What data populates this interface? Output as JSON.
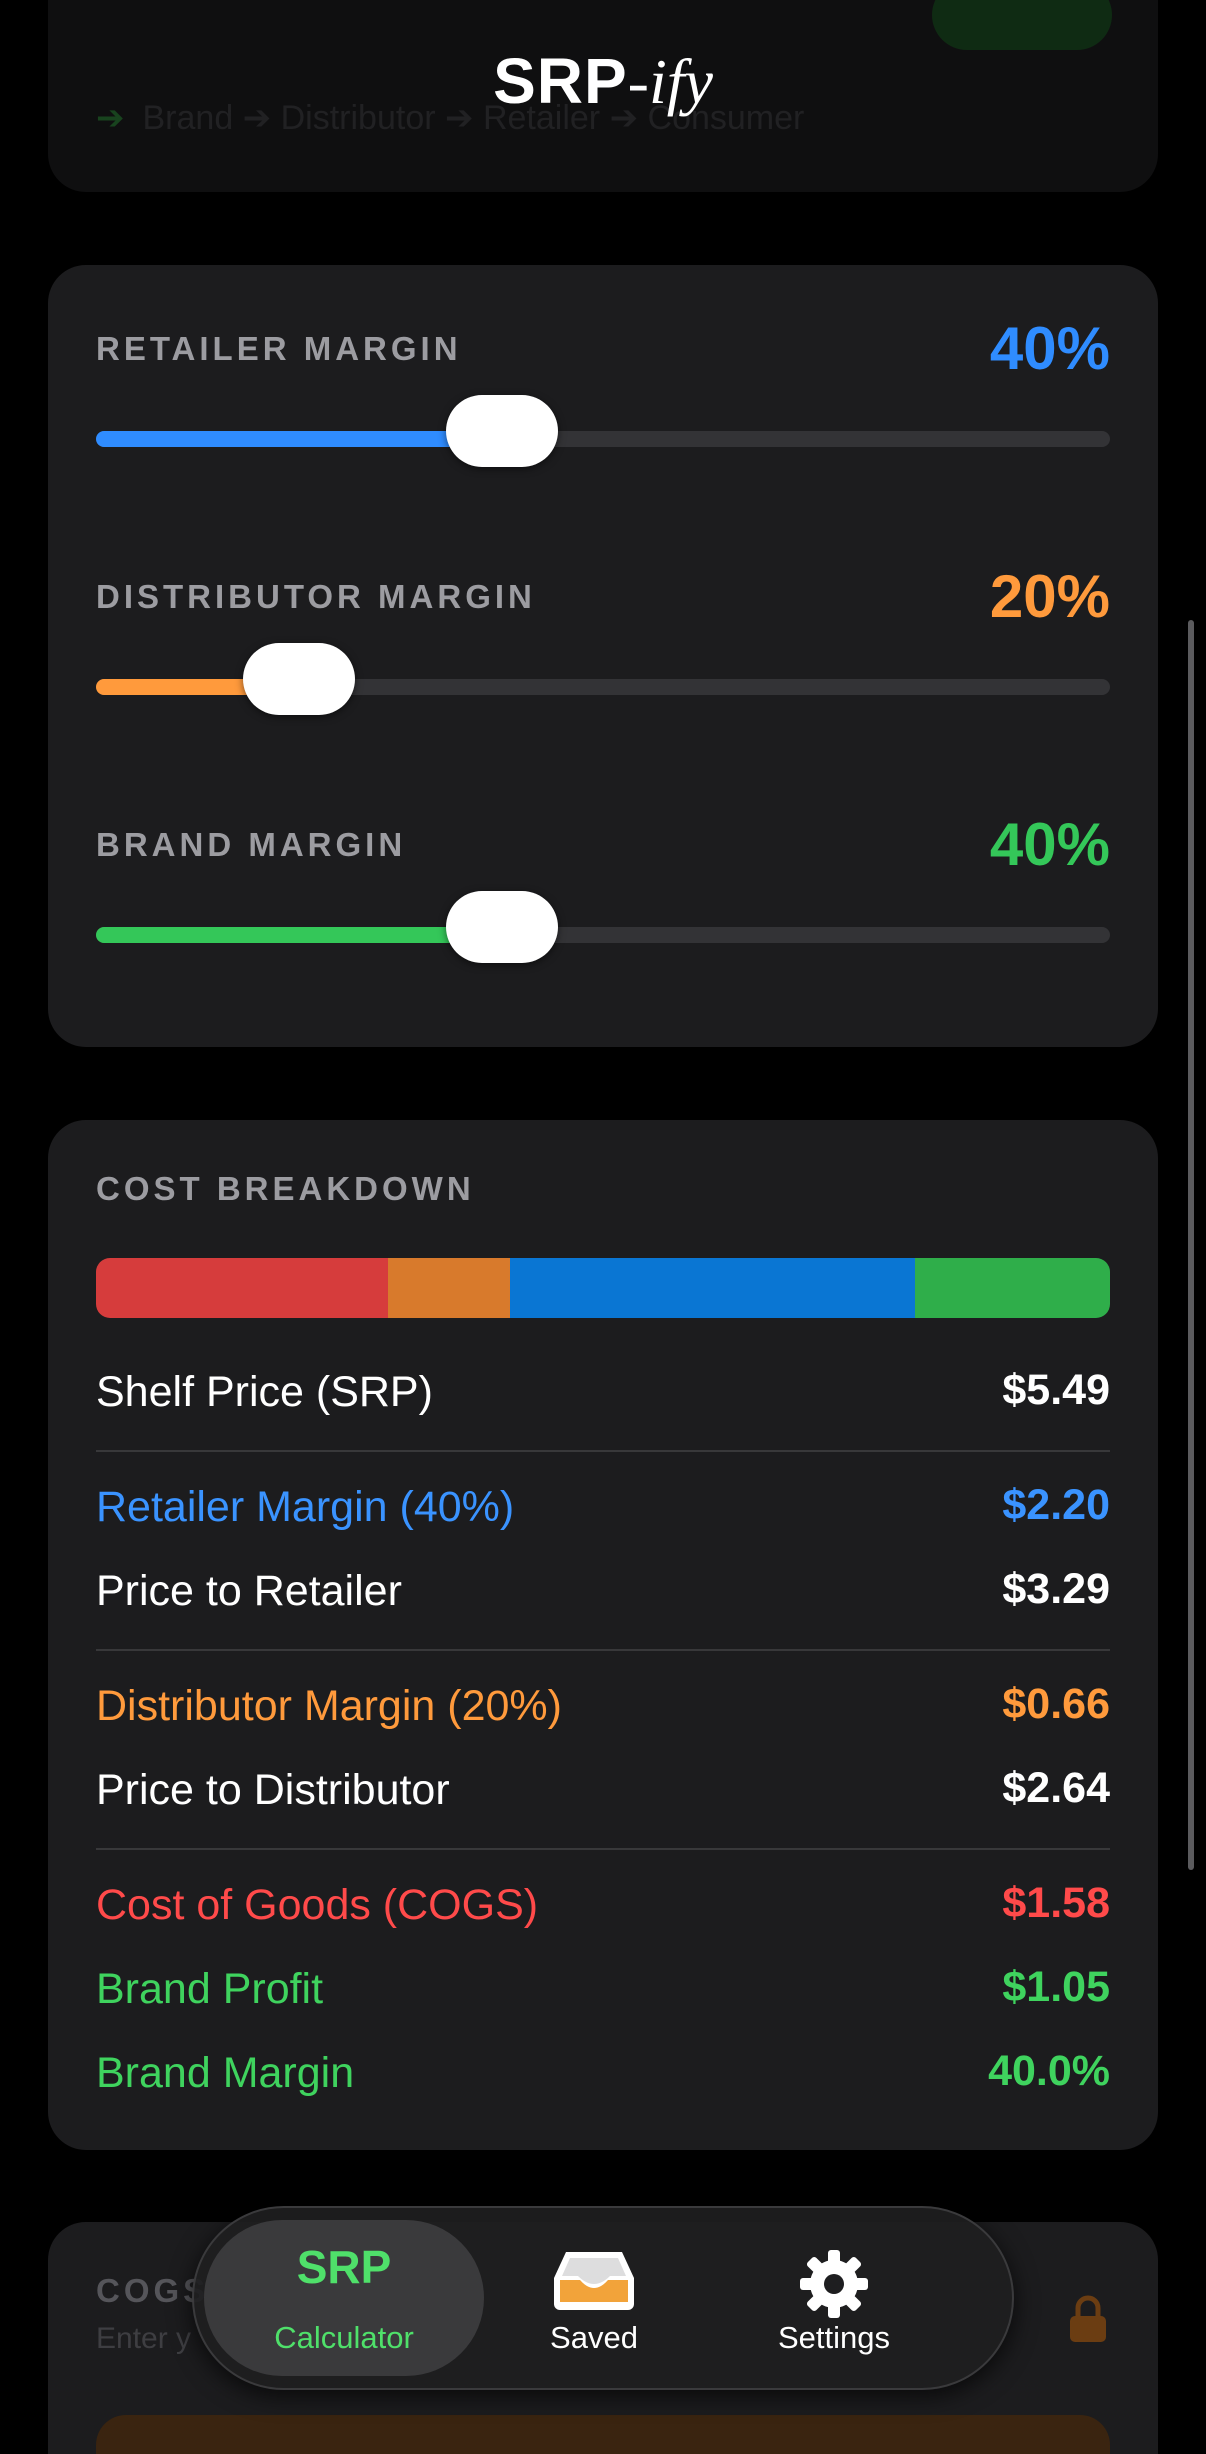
{
  "app": {
    "title_strong": "SRP",
    "title_script": "-ify"
  },
  "top_card": {
    "flow": [
      "Brand",
      "Distributor",
      "Retailer",
      "Consumer"
    ]
  },
  "sliders": [
    {
      "label": "RETAILER MARGIN",
      "value": "40%",
      "level": 0.4,
      "color": "#2f8cff"
    },
    {
      "label": "DISTRIBUTOR MARGIN",
      "value": "20%",
      "level": 0.2,
      "color": "#ff9a3c"
    },
    {
      "label": "BRAND MARGIN",
      "value": "40%",
      "level": 0.4,
      "color": "#34c759"
    }
  ],
  "breakdown": {
    "label": "COST BREAKDOWN",
    "bar_segments": [
      {
        "name": "cogs",
        "share": 0.288,
        "color": "#d63c3c"
      },
      {
        "name": "distributor",
        "share": 0.12,
        "color": "#d87a2c"
      },
      {
        "name": "retailer",
        "share": 0.4,
        "color": "#0a76d3"
      },
      {
        "name": "brand",
        "share": 0.192,
        "color": "#2fae4a"
      }
    ],
    "rows": [
      {
        "label": "Shelf Price (SRP)",
        "value": "$5.49",
        "color": "#ffffff"
      },
      {
        "label": "Retailer Margin (40%)",
        "value": "$2.20",
        "color": "#3a93ff"
      },
      {
        "label": "Price to Retailer",
        "value": "$3.29",
        "color": "#ffffff"
      },
      {
        "label": "Distributor Margin (20%)",
        "value": "$0.66",
        "color": "#ff9a3c"
      },
      {
        "label": "Price to Distributor",
        "value": "$2.64",
        "color": "#ffffff"
      },
      {
        "label": "Cost of Goods (COGS)",
        "value": "$1.58",
        "color": "#ff4a4a"
      },
      {
        "label": "Brand Profit",
        "value": "$1.05",
        "color": "#3fd35e"
      },
      {
        "label": "Brand Margin",
        "value": "40.0%",
        "color": "#3fd35e"
      }
    ]
  },
  "bottom_card": {
    "label": "COGS",
    "subtitle": "Enter y"
  },
  "tabs": {
    "calculator_mark": "SRP",
    "calculator_label": "Calculator",
    "saved_label": "Saved",
    "settings_label": "Settings"
  },
  "icons": {
    "saved": "tray-icon",
    "settings": "gear-icon",
    "lock": "lock-icon"
  }
}
